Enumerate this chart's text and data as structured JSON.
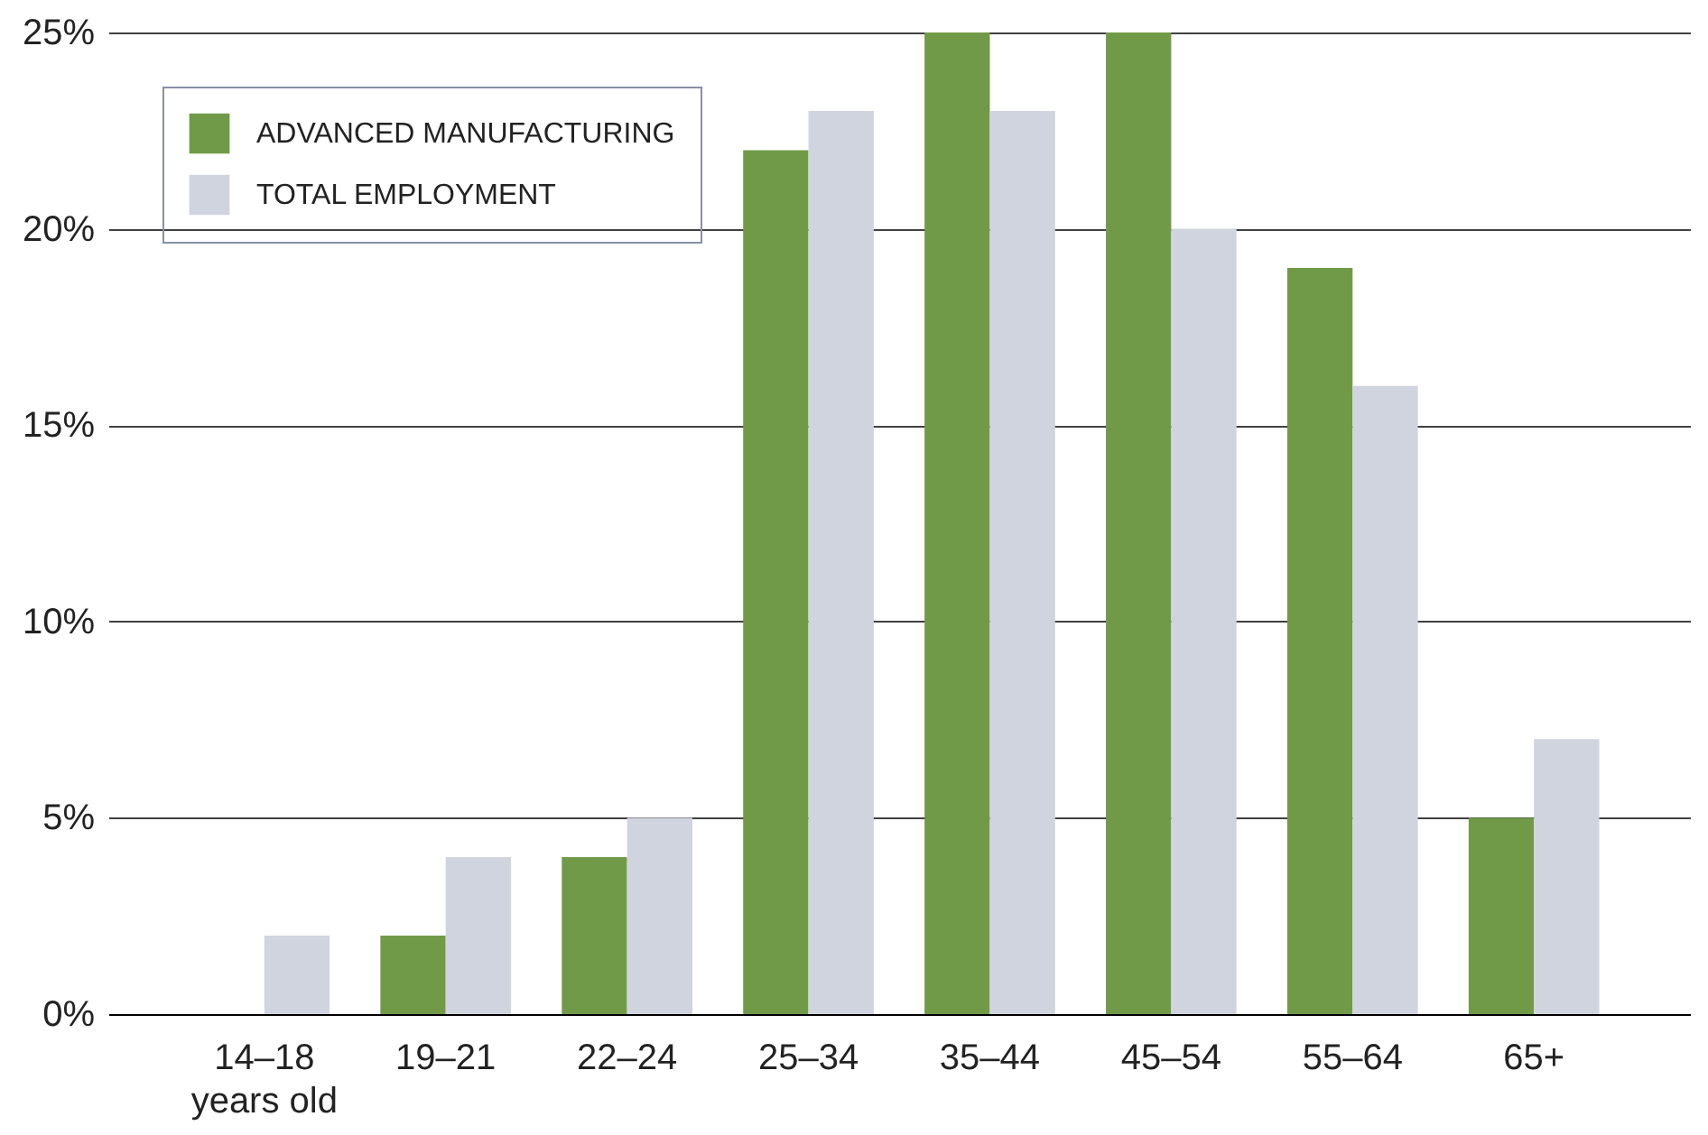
{
  "chart_data": {
    "type": "bar",
    "categories": [
      "14–18\nyears old",
      "19–21",
      "22–24",
      "25–34",
      "35–44",
      "45–54",
      "55–64",
      "65+"
    ],
    "series": [
      {
        "name": "ADVANCED MANUFACTURING",
        "color": "#709a48",
        "values": [
          0,
          2,
          4,
          22,
          25,
          25,
          19,
          5
        ]
      },
      {
        "name": "TOTAL EMPLOYMENT",
        "color": "#d0d4de",
        "values": [
          2,
          4,
          5,
          23,
          23,
          20,
          16,
          7
        ]
      }
    ],
    "ylim": [
      0,
      25
    ],
    "yticks": [
      {
        "value": 0,
        "label": "0%"
      },
      {
        "value": 5,
        "label": "5%"
      },
      {
        "value": 10,
        "label": "10%"
      },
      {
        "value": 15,
        "label": "15%"
      },
      {
        "value": 20,
        "label": "20%"
      },
      {
        "value": 25,
        "label": "25%"
      }
    ],
    "grid": "y",
    "legend": "top left"
  }
}
